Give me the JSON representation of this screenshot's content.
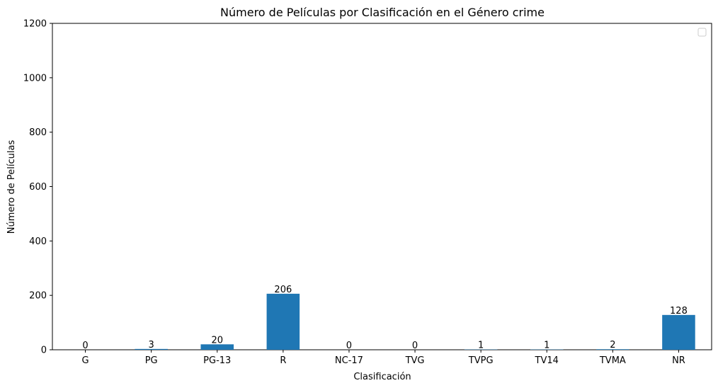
{
  "chart_data": {
    "type": "bar",
    "title": "Número de Películas por Clasificación en el Género crime",
    "xlabel": "Clasificación",
    "ylabel": "Número de Películas",
    "categories": [
      "G",
      "PG",
      "PG-13",
      "R",
      "NC-17",
      "TVG",
      "TVPG",
      "TV14",
      "TVMA",
      "NR"
    ],
    "values": [
      0,
      3,
      20,
      206,
      0,
      0,
      1,
      1,
      2,
      128
    ],
    "ylim": [
      0,
      1200
    ],
    "yticks": [
      0,
      200,
      400,
      600,
      800,
      1000,
      1200
    ],
    "bar_color": "#1f77b4",
    "legend": {
      "placement": "top-right",
      "entries": []
    },
    "grid": false
  }
}
